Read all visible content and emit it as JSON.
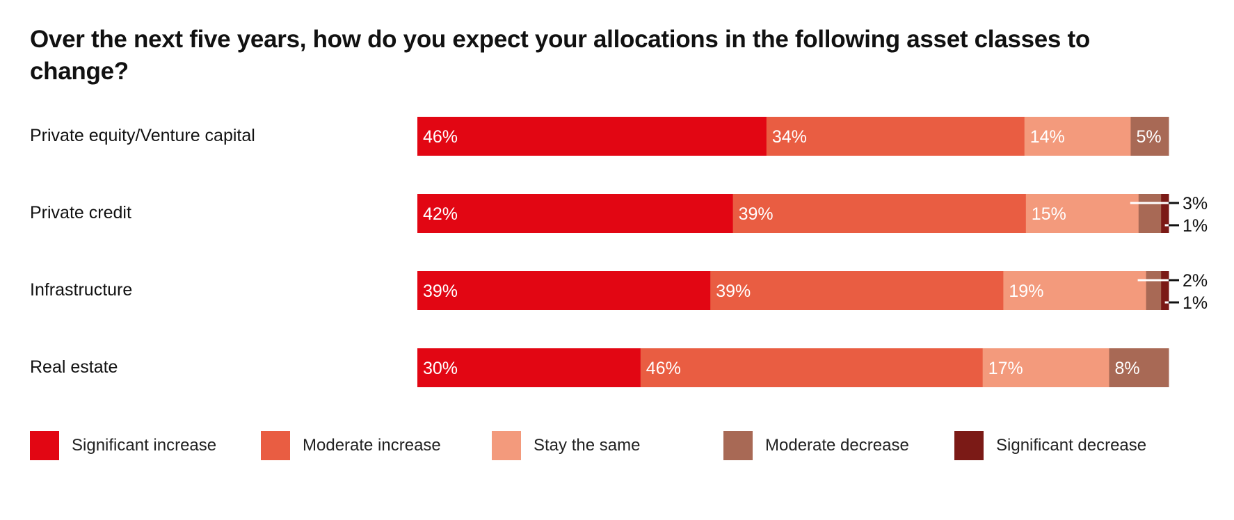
{
  "chart_data": {
    "type": "bar",
    "orientation": "horizontal",
    "stacked": true,
    "title": "Over the next five years, how do you expect your allocations in the following asset classes to change?",
    "categories": [
      "Private equity/Venture capital",
      "Private credit",
      "Infrastructure",
      "Real estate"
    ],
    "series": [
      {
        "name": "Significant increase",
        "color": "#e20613",
        "values": [
          46,
          42,
          39,
          30
        ]
      },
      {
        "name": "Moderate increase",
        "color": "#e95d42",
        "values": [
          34,
          39,
          39,
          46
        ]
      },
      {
        "name": "Stay the same",
        "color": "#f39a7c",
        "values": [
          14,
          15,
          19,
          17
        ]
      },
      {
        "name": "Moderate decrease",
        "color": "#a86955",
        "values": [
          5,
          3,
          2,
          8
        ]
      },
      {
        "name": "Significant decrease",
        "color": "#7b1a16",
        "values": [
          0,
          1,
          1,
          0
        ]
      }
    ],
    "value_suffix": "%",
    "legend": "bottom"
  }
}
